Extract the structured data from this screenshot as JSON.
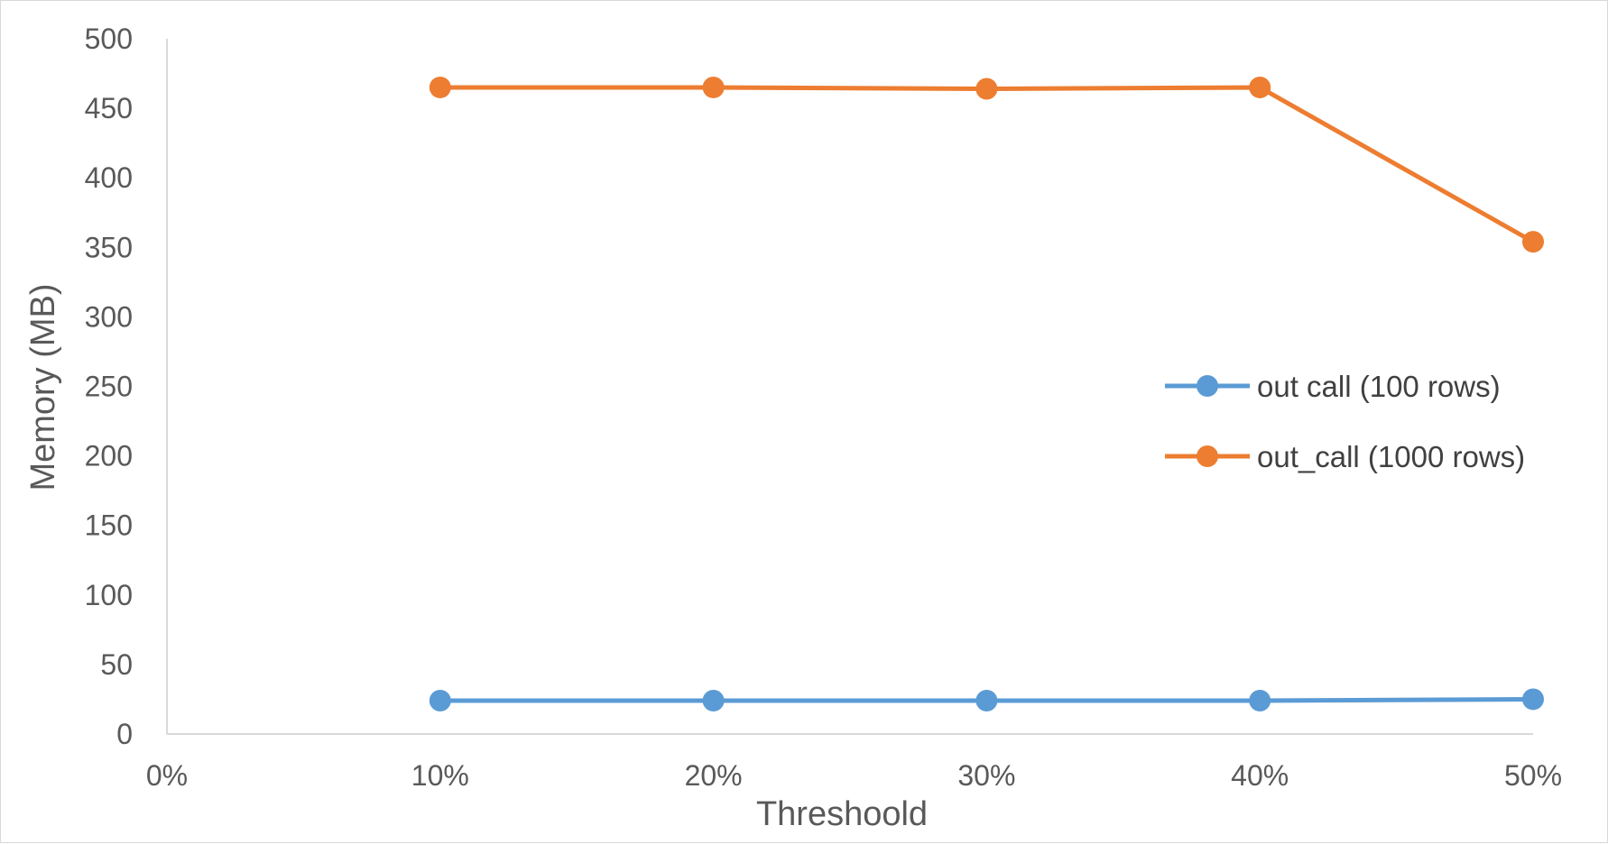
{
  "chart_data": {
    "type": "line",
    "title": "",
    "xlabel": "Threshoold",
    "ylabel": "Memory (MB)",
    "categories": [
      "0%",
      "10%",
      "20%",
      "30%",
      "40%",
      "50%"
    ],
    "yticks": [
      "0",
      "50",
      "100",
      "150",
      "200",
      "250",
      "300",
      "350",
      "400",
      "450",
      "500"
    ],
    "ylim": [
      0,
      500
    ],
    "grid": false,
    "legend_position": "right",
    "series": [
      {
        "name": "out call (100 rows)",
        "color": "#5b9bd5",
        "values": [
          null,
          24,
          24,
          24,
          24,
          25
        ]
      },
      {
        "name": "out_call (1000 rows)",
        "color": "#ed7d31",
        "values": [
          null,
          465,
          465,
          464,
          465,
          354
        ]
      }
    ]
  }
}
